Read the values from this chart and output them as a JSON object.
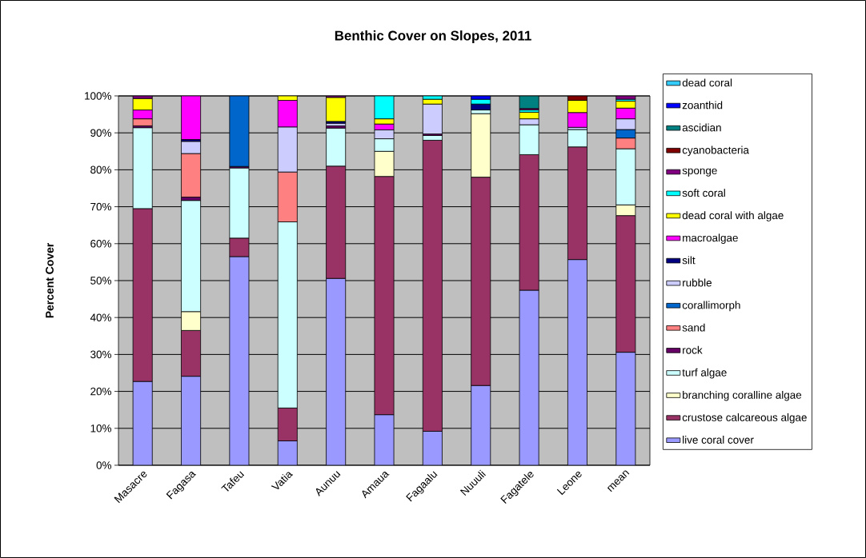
{
  "chart_data": {
    "type": "bar",
    "stacked": true,
    "title": "Benthic Cover on Slopes, 2011",
    "ylabel": "Percent Cover",
    "categories": [
      "Masacre",
      "Fagasa",
      "Tafeu",
      "Vatia",
      "Aunuu",
      "Amaua",
      "Fagaalu",
      "Nuuuli",
      "Fagatele",
      "Leone",
      "mean"
    ],
    "ylim": [
      0,
      100
    ],
    "yticks": [
      {
        "value": 0,
        "label": "0%"
      },
      {
        "value": 10,
        "label": "10%"
      },
      {
        "value": 20,
        "label": "20%"
      },
      {
        "value": 30,
        "label": "30%"
      },
      {
        "value": 40,
        "label": "40%"
      },
      {
        "value": 50,
        "label": "50%"
      },
      {
        "value": 60,
        "label": "60%"
      },
      {
        "value": 70,
        "label": "70%"
      },
      {
        "value": 80,
        "label": "80%"
      },
      {
        "value": 90,
        "label": "90%"
      },
      {
        "value": 100,
        "label": "100%"
      }
    ],
    "grid": "y",
    "legend": "right",
    "series": [
      {
        "name": "live coral cover",
        "color": "#9999ff",
        "values": [
          22.7,
          24.1,
          56.5,
          6.6,
          50.6,
          13.7,
          9.2,
          21.6,
          47.4,
          55.7,
          30.6
        ]
      },
      {
        "name": "crustose calcareous algae",
        "color": "#993366",
        "values": [
          46.8,
          12.4,
          5.0,
          8.9,
          30.4,
          64.5,
          78.8,
          56.4,
          36.7,
          30.5,
          37.0
        ]
      },
      {
        "name": "branching coralline algae",
        "color": "#ffffcc",
        "values": [
          null,
          5.1,
          null,
          null,
          null,
          6.8,
          null,
          17.2,
          null,
          null,
          2.9
        ]
      },
      {
        "name": "turf algae",
        "color": "#ccffff",
        "values": [
          21.9,
          30.1,
          19.0,
          50.4,
          10.3,
          3.4,
          1.3,
          1.0,
          8.1,
          4.7,
          15.2
        ]
      },
      {
        "name": "rock",
        "color": "#660066",
        "values": [
          0.5,
          0.9,
          0.4,
          null,
          0.6,
          null,
          0.4,
          null,
          null,
          null,
          null
        ]
      },
      {
        "name": "sand",
        "color": "#ff8080",
        "values": [
          1.9,
          11.8,
          null,
          13.5,
          null,
          null,
          null,
          null,
          null,
          null,
          2.9
        ]
      },
      {
        "name": "corallimorph",
        "color": "#0066cc",
        "values": [
          null,
          null,
          19.1,
          null,
          null,
          null,
          null,
          null,
          null,
          null,
          2.3
        ]
      },
      {
        "name": "rubble",
        "color": "#ccccff",
        "values": [
          null,
          3.3,
          null,
          12.2,
          0.7,
          2.4,
          8.1,
          null,
          1.6,
          0.6,
          2.9
        ]
      },
      {
        "name": "silt",
        "color": "#000080",
        "values": [
          null,
          0.5,
          null,
          null,
          0.5,
          null,
          null,
          1.6,
          null,
          null,
          null
        ]
      },
      {
        "name": "macroalgae",
        "color": "#ff00ff",
        "values": [
          2.4,
          11.8,
          null,
          7.2,
          null,
          1.6,
          null,
          null,
          null,
          4.0,
          2.9
        ]
      },
      {
        "name": "dead coral with algae",
        "color": "#ffff00",
        "values": [
          3.1,
          null,
          null,
          1.2,
          6.5,
          1.4,
          1.3,
          null,
          1.8,
          3.3,
          1.9
        ]
      },
      {
        "name": "soft coral",
        "color": "#00ffff",
        "values": [
          null,
          null,
          null,
          null,
          null,
          6.2,
          0.9,
          1.3,
          0.6,
          null,
          0.5
        ]
      },
      {
        "name": "sponge",
        "color": "#800080",
        "values": [
          0.7,
          null,
          null,
          null,
          0.4,
          null,
          null,
          null,
          0.4,
          null,
          0.9
        ]
      },
      {
        "name": "cyanobacteria",
        "color": "#800000",
        "values": [
          null,
          null,
          null,
          null,
          null,
          null,
          null,
          null,
          null,
          1.2,
          null
        ]
      },
      {
        "name": "ascidian",
        "color": "#008080",
        "values": [
          null,
          null,
          null,
          null,
          null,
          null,
          null,
          null,
          3.4,
          null,
          null
        ]
      },
      {
        "name": "zoanthid",
        "color": "#0000ff",
        "values": [
          null,
          null,
          null,
          null,
          null,
          null,
          null,
          0.9,
          null,
          null,
          null
        ]
      },
      {
        "name": "dead coral",
        "color": "#33ccff",
        "values": [
          null,
          null,
          null,
          null,
          null,
          null,
          null,
          null,
          null,
          null,
          null
        ]
      }
    ]
  }
}
